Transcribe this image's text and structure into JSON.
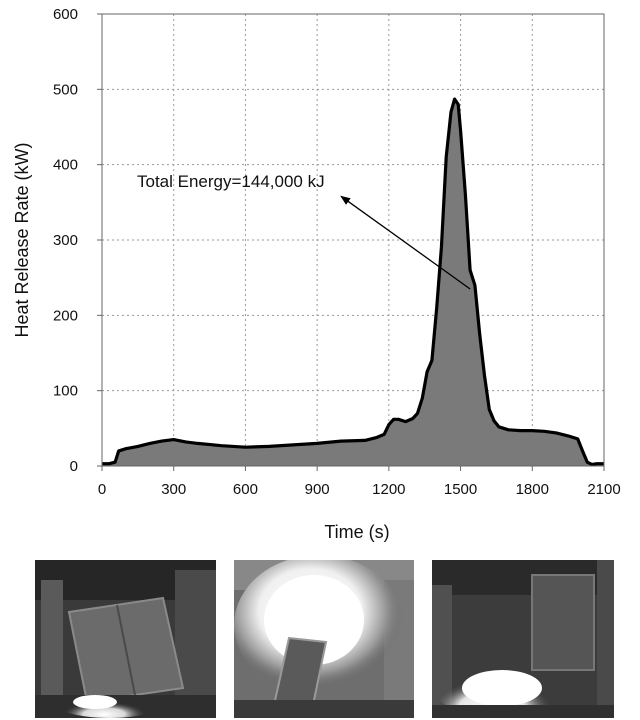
{
  "chart_data": {
    "type": "area",
    "xlabel": "Time (s)",
    "ylabel": "Heat Release Rate (kW)",
    "xlim": [
      0,
      2100
    ],
    "ylim": [
      0,
      600
    ],
    "x_ticks": [
      "0",
      "300",
      "600",
      "900",
      "1200",
      "1500",
      "1800",
      "2100"
    ],
    "y_ticks": [
      "0",
      "100",
      "200",
      "300",
      "400",
      "500",
      "600"
    ],
    "grid": true,
    "annotation": {
      "text": "Total Energy=144,000  kJ",
      "arrow_from": [
        1540,
        235
      ],
      "arrow_to": [
        1000,
        358
      ]
    },
    "series": [
      {
        "x": [
          0,
          30,
          55,
          70,
          80,
          100,
          150,
          200,
          250,
          300,
          350,
          400,
          500,
          600,
          700,
          800,
          900,
          1000,
          1100,
          1150,
          1180,
          1200,
          1220,
          1240,
          1270,
          1300,
          1320,
          1340,
          1360,
          1380,
          1400,
          1420,
          1440,
          1460,
          1475,
          1490,
          1500,
          1520,
          1540,
          1560,
          1580,
          1600,
          1620,
          1640,
          1660,
          1680,
          1700,
          1750,
          1800,
          1850,
          1900,
          1950,
          1990,
          2010,
          2030,
          2050,
          2070,
          2100
        ],
        "y": [
          3,
          3,
          5,
          20,
          21,
          23,
          26,
          30,
          33,
          35,
          32,
          30,
          27,
          25,
          26,
          28,
          30,
          33,
          34,
          38,
          42,
          55,
          62,
          62,
          59,
          63,
          70,
          90,
          125,
          140,
          210,
          290,
          410,
          470,
          487,
          480,
          445,
          360,
          260,
          240,
          175,
          120,
          75,
          60,
          52,
          50,
          48,
          47,
          47,
          46,
          44,
          40,
          36,
          20,
          5,
          2,
          3,
          3
        ]
      }
    ]
  },
  "photos": [
    {
      "icon": "cabinet-fire-start-photo"
    },
    {
      "icon": "cabinet-fire-peak-photo"
    },
    {
      "icon": "cabinet-fire-decay-photo"
    }
  ]
}
